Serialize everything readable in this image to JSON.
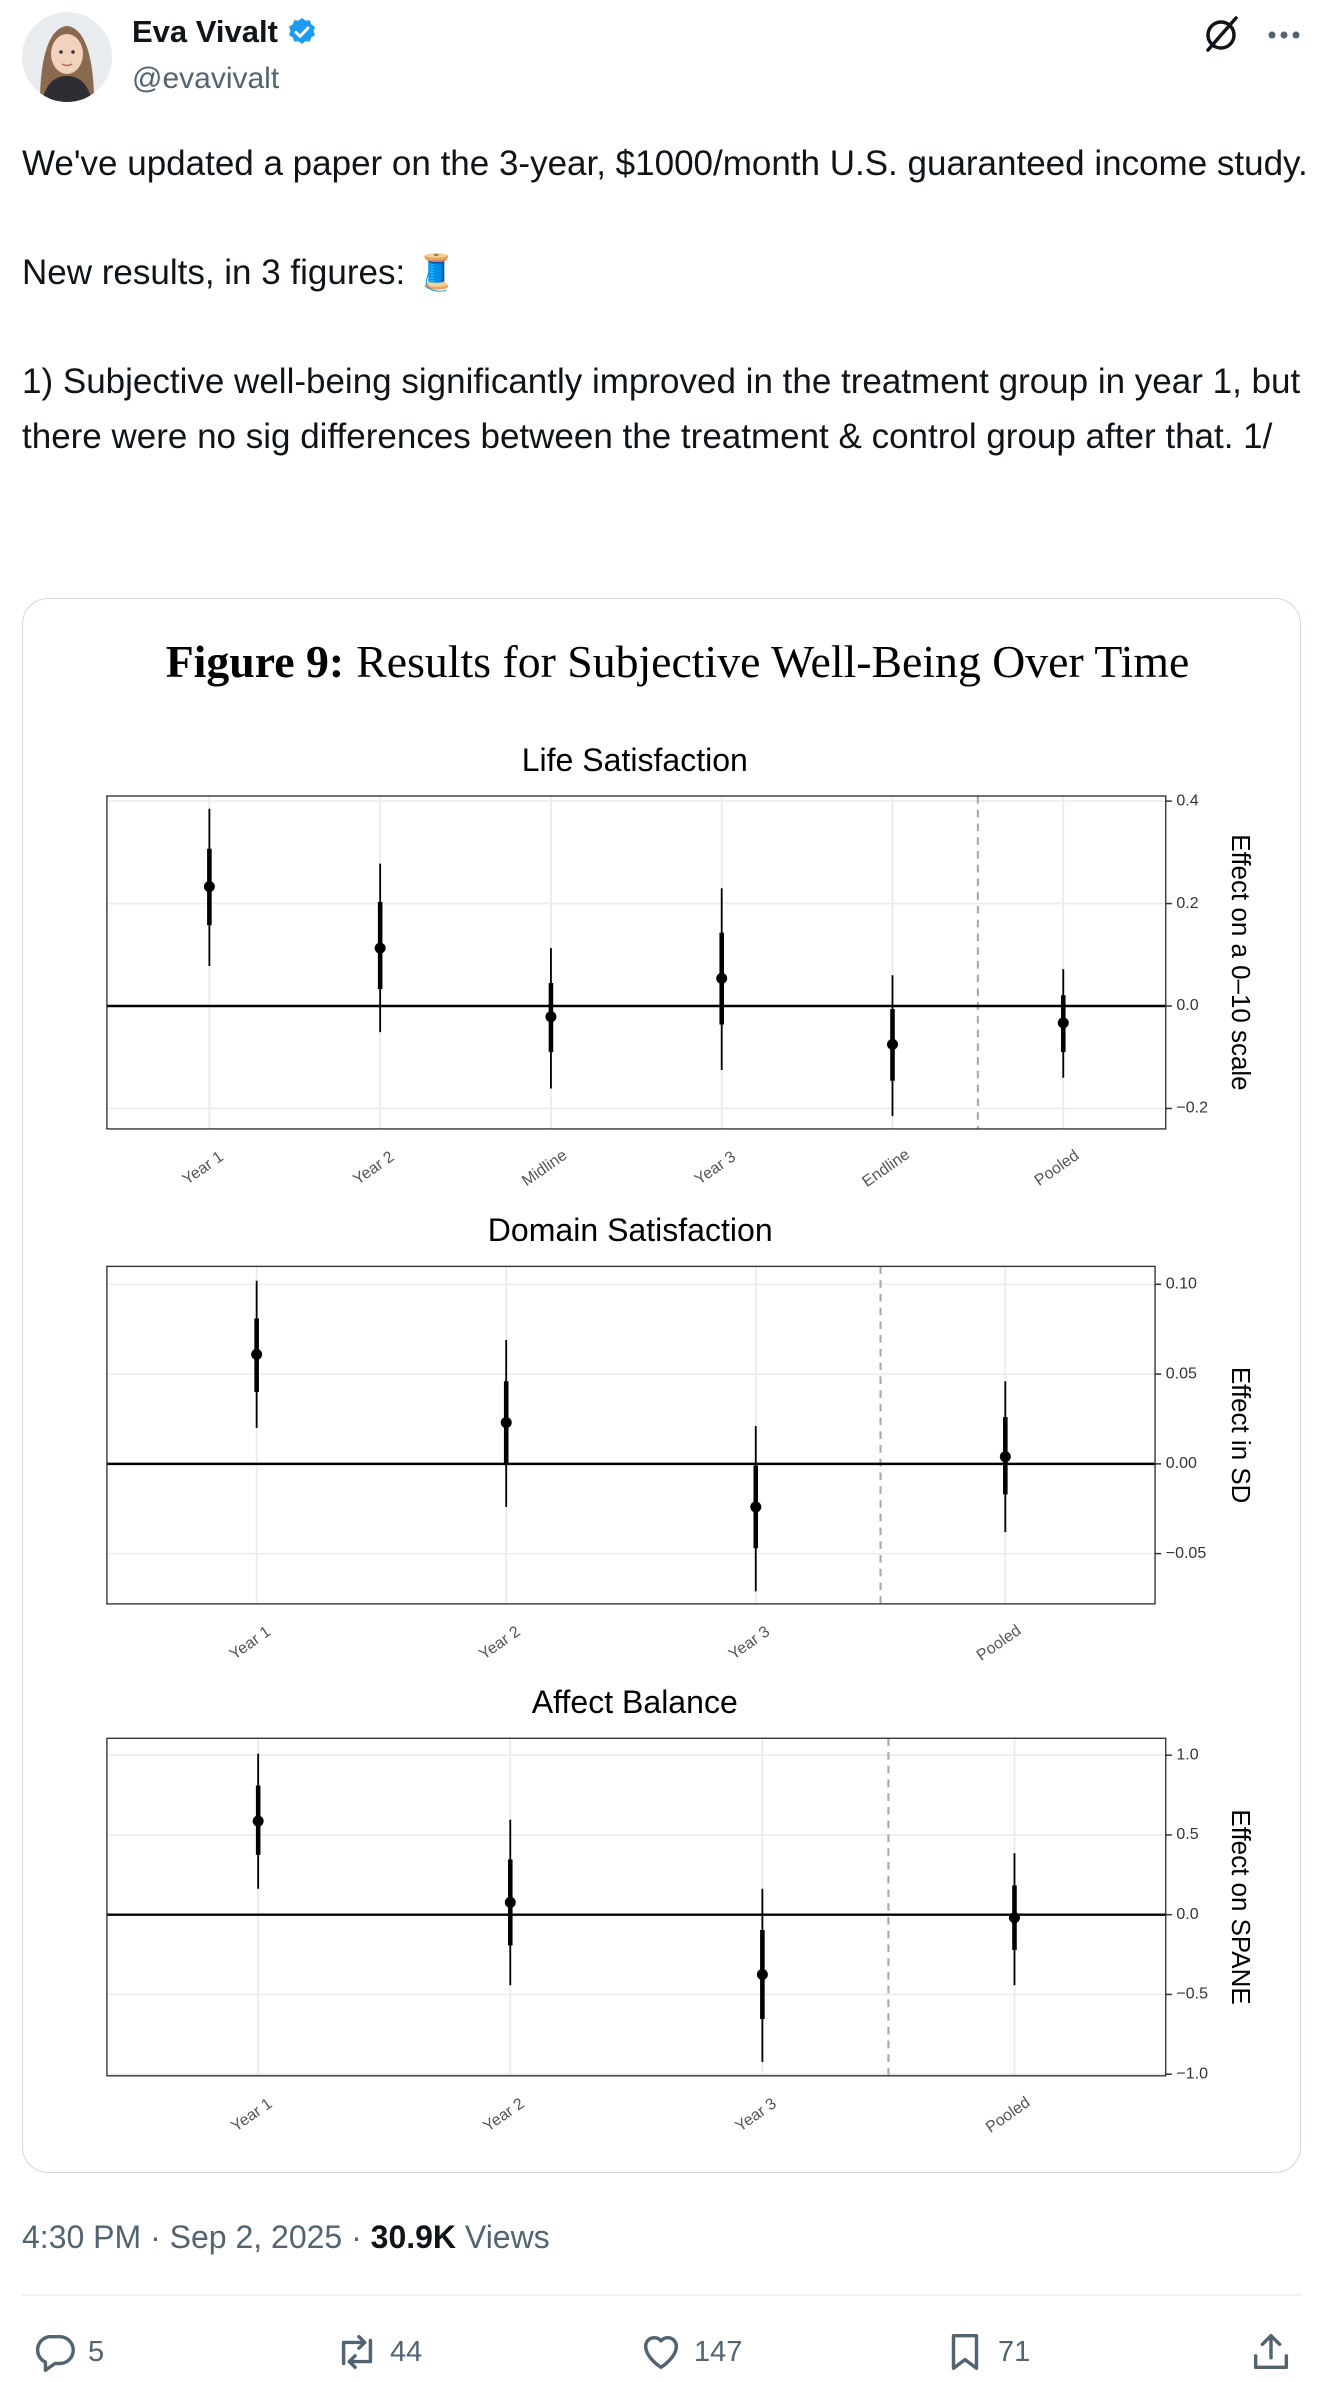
{
  "author": {
    "name": "Eva Vivalt",
    "handle": "@evavivalt"
  },
  "tweet": {
    "paragraphs": [
      "We've updated a paper on the 3-year, $1000/month U.S. guaranteed income study.",
      "New results, in 3 figures: 🧵",
      "1) Subjective well-being significantly improved in the treatment group in year 1, but there were no sig differences between the treatment & control group after that. 1/"
    ]
  },
  "figure": {
    "label": "Figure 9:",
    "title": "Results for Subjective Well-Being Over Time"
  },
  "chart_data": [
    {
      "type": "pointrange",
      "title": "Life Satisfaction",
      "ylabel": "Effect on a 0–10 scale",
      "categories": [
        "Year 1",
        "Year 2",
        "Midline",
        "Year 3",
        "Endline",
        "Pooled"
      ],
      "values": [
        0.233,
        0.113,
        -0.021,
        0.054,
        -0.075,
        -0.033
      ],
      "inner_low": [
        0.158,
        0.033,
        -0.09,
        -0.036,
        -0.146,
        -0.09
      ],
      "inner_high": [
        0.307,
        0.203,
        0.045,
        0.143,
        -0.006,
        0.021
      ],
      "outer_low": [
        0.078,
        -0.051,
        -0.161,
        -0.125,
        -0.215,
        -0.14
      ],
      "outer_high": [
        0.385,
        0.278,
        0.113,
        0.23,
        0.06,
        0.072
      ],
      "color": "#000000",
      "ylim": [
        -0.24,
        0.41
      ],
      "yticks": [
        {
          "value": -0.2,
          "label": "−0.2"
        },
        {
          "value": 0,
          "label": "0.0"
        },
        0.2,
        0.4
      ],
      "grid": true
    },
    {
      "type": "pointrange",
      "title": "Domain Satisfaction",
      "ylabel": "Effect in SD",
      "categories": [
        "Year 1",
        "Year 2",
        "Year 3",
        "Pooled"
      ],
      "values": [
        0.061,
        0.023,
        -0.024,
        0.004
      ],
      "inner_low": [
        0.04,
        0,
        -0.047,
        -0.017
      ],
      "inner_high": [
        0.081,
        0.046,
        -0.001,
        0.026
      ],
      "outer_low": [
        0.02,
        -0.024,
        -0.071,
        -0.038
      ],
      "outer_high": [
        0.102,
        0.069,
        0.021,
        0.046
      ],
      "color": "#000000",
      "ylim": [
        -0.078,
        0.11
      ],
      "yticks": [
        {
          "value": -0.05,
          "label": "−0.05"
        },
        {
          "value": 0,
          "label": "0.00"
        },
        0.05,
        {
          "value": 0.1,
          "label": "0.10"
        }
      ],
      "grid": true
    },
    {
      "type": "pointrange",
      "title": "Affect Balance",
      "ylabel": "Effect on SPANE",
      "categories": [
        "Year 1",
        "Year 2",
        "Year 3",
        "Pooled"
      ],
      "values": [
        0.587,
        0.077,
        -0.375,
        -0.019
      ],
      "inner_low": [
        0.375,
        -0.192,
        -0.654,
        -0.221
      ],
      "inner_high": [
        0.81,
        0.346,
        -0.096,
        0.183
      ],
      "outer_low": [
        0.163,
        -0.442,
        -0.923,
        -0.442
      ],
      "outer_high": [
        1.01,
        0.596,
        0.163,
        0.385
      ],
      "color": "#000000",
      "ylim": [
        -1.01,
        1.106
      ],
      "yticks": [
        {
          "value": -1,
          "label": "−1.0"
        },
        {
          "value": -0.5,
          "label": "−0.5"
        },
        {
          "value": 0,
          "label": "0.0"
        },
        0.5,
        {
          "value": 1,
          "label": "1.0"
        }
      ],
      "grid": true
    }
  ],
  "meta": {
    "time": "4:30 PM",
    "separator": "·",
    "date": "Sep 2, 2025",
    "views": "30.9K",
    "views_label": "Views"
  },
  "actions": {
    "replies": 5,
    "reposts": 44,
    "likes": 147,
    "bookmarks": 71
  }
}
